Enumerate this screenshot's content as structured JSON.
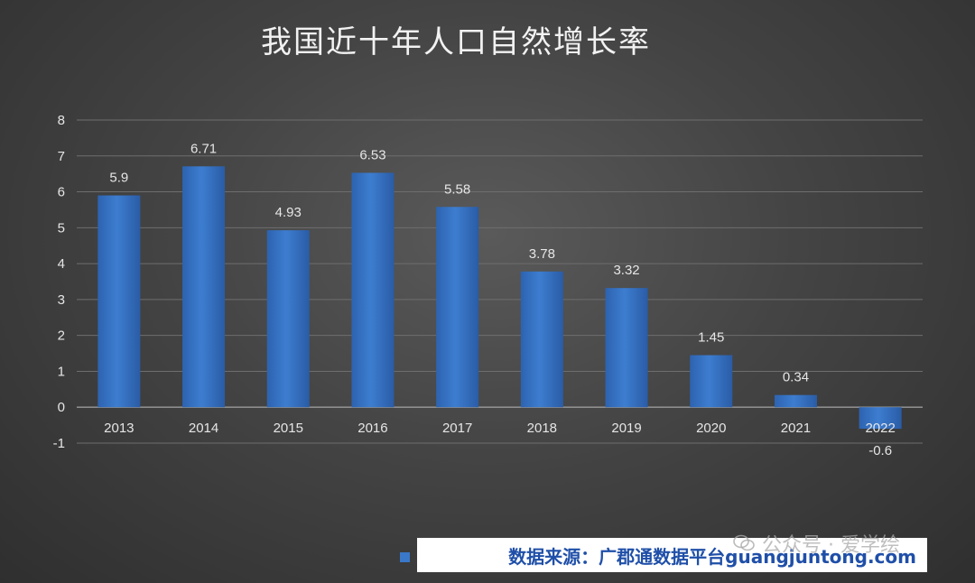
{
  "chart_data": {
    "type": "bar",
    "title": "我国近十年人口自然增长率",
    "categories": [
      "2013",
      "2014",
      "2015",
      "2016",
      "2017",
      "2018",
      "2019",
      "2020",
      "2021",
      "2022"
    ],
    "values": [
      5.9,
      6.71,
      4.93,
      6.53,
      5.58,
      3.78,
      3.32,
      1.45,
      0.34,
      -0.6
    ],
    "value_labels": [
      "5.9",
      "6.71",
      "4.93",
      "6.53",
      "5.58",
      "3.78",
      "3.32",
      "1.45",
      "0.34",
      "-0.6"
    ],
    "ylim": [
      -1,
      8
    ],
    "yticks": [
      "-1",
      "0",
      "1",
      "2",
      "3",
      "4",
      "5",
      "6",
      "7",
      "8"
    ],
    "grid": true,
    "colors": {
      "bar": "#3a78c9",
      "bar_dark": "#2a5fa8",
      "grid": "#6e6e6e"
    }
  },
  "footer": {
    "source_text": "数据来源：广郡通数据平台guangjuntong.com",
    "watermark_text": "公众号 · 爱学绘",
    "watermark_icon": "wechat-icon"
  }
}
